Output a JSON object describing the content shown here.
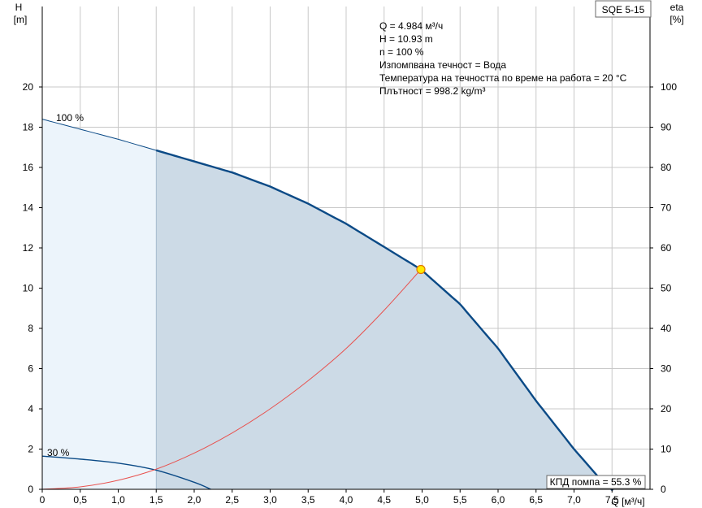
{
  "chart_data": {
    "type": "line",
    "title": "SQE 5-15",
    "xlabel": "Q [м³/ч]",
    "y_left_label": {
      "name": "H",
      "unit": "[m]"
    },
    "y_right_label": {
      "name": "eta",
      "unit": "[%]"
    },
    "xlim": [
      0,
      8.0
    ],
    "ylim_left": [
      0,
      24
    ],
    "ylim_right": [
      0,
      120
    ],
    "x_ticks": [
      "0",
      "0,5",
      "1,0",
      "1,5",
      "2,0",
      "2,5",
      "3,0",
      "3,5",
      "4,0",
      "4,5",
      "5,0",
      "5,5",
      "6,0",
      "6,5",
      "7,0",
      "7,5"
    ],
    "y_left_ticks": [
      "0",
      "2",
      "4",
      "6",
      "8",
      "10",
      "12",
      "14",
      "16",
      "18",
      "20"
    ],
    "y_right_ticks": [
      "0",
      "10",
      "20",
      "30",
      "40",
      "50",
      "60",
      "70",
      "80",
      "90",
      "100"
    ],
    "grid": true,
    "info": [
      "Q = 4.984 м³/ч",
      "H = 10.93 m",
      "n = 100 %",
      "Изпомпвана течност = Вода",
      "Температура на течността по време на работа = 20 °C",
      "Плътност = 998.2 kg/m³"
    ],
    "series": [
      {
        "name": "100 %",
        "x": [
          0,
          0.5,
          1.0,
          1.5,
          2.0,
          2.5,
          3.0,
          3.5,
          4.0,
          4.5,
          4.984,
          5.5,
          6.0,
          6.5,
          7.0,
          7.3
        ],
        "y": [
          18.4,
          17.9,
          17.4,
          16.85,
          16.3,
          15.75,
          15.05,
          14.2,
          13.2,
          12.05,
          10.93,
          9.2,
          7.0,
          4.4,
          2.0,
          0.7
        ]
      },
      {
        "name": "30 %",
        "x": [
          0,
          0.5,
          1.0,
          1.5,
          2.0,
          2.22
        ],
        "y": [
          1.65,
          1.5,
          1.3,
          0.95,
          0.35,
          0.0
        ]
      },
      {
        "name": "КПД помпа",
        "x": [
          0,
          0.5,
          1.0,
          1.5,
          2.0,
          2.5,
          3.0,
          3.5,
          4.0,
          4.5,
          4.984
        ],
        "y": [
          0,
          0.12,
          0.45,
          1.0,
          1.8,
          2.8,
          4.0,
          5.4,
          7.0,
          8.9,
          10.93
        ]
      }
    ],
    "operating_point": {
      "x": 4.984,
      "y": 10.93
    },
    "efficiency_label": "КПД помпа = 55.3 %",
    "curve_labels": [
      "100 %",
      "30 %"
    ],
    "colors": {
      "curve": "#0b4a86",
      "efficiency": "#e8524f",
      "area_light": "#ecf4fb",
      "area_dark": "#ccdae6",
      "grid": "#c8c8c8",
      "point_fill": "#ffea00",
      "point_stroke": "#e07800"
    }
  }
}
